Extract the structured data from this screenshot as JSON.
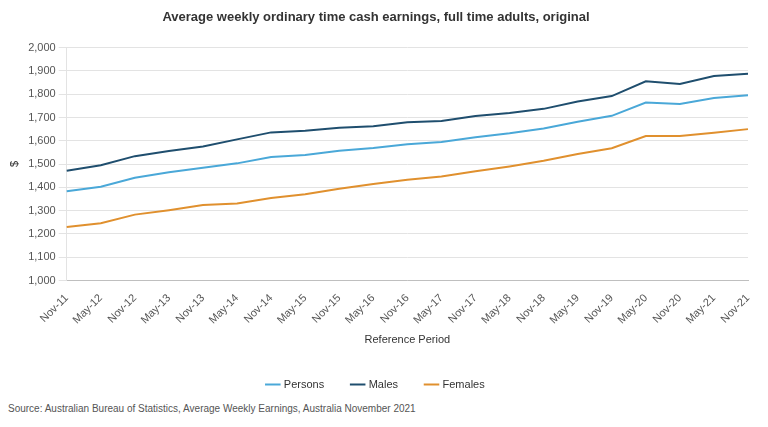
{
  "chart_data": {
    "type": "line",
    "title": "Average weekly ordinary time cash earnings, full time adults, original",
    "x_label": "Reference Period",
    "y_label": "$",
    "source": "Source: Australian Bureau of Statistics, Average Weekly Earnings, Australia November 2021",
    "categories": [
      "Nov-11",
      "May-12",
      "Nov-12",
      "May-13",
      "Nov-13",
      "May-14",
      "Nov-14",
      "May-15",
      "Nov-15",
      "May-16",
      "Nov-16",
      "May-17",
      "Nov-17",
      "May-18",
      "Nov-18",
      "May-19",
      "Nov-19",
      "May-20",
      "Nov-20",
      "May-21",
      "Nov-21"
    ],
    "series": [
      {
        "name": "Persons",
        "color": "#4aa8d8",
        "values": [
          1383,
          1403,
          1441,
          1465,
          1484,
          1503,
          1530,
          1539,
          1557,
          1569,
          1585,
          1595,
          1615,
          1632,
          1653,
          1682,
          1707,
          1764,
          1758,
          1784,
          1795
        ]
      },
      {
        "name": "Males",
        "color": "#1f4e6e",
        "values": [
          1471,
          1495,
          1534,
          1556,
          1575,
          1606,
          1636,
          1643,
          1656,
          1662,
          1679,
          1685,
          1706,
          1719,
          1737,
          1769,
          1792,
          1855,
          1844,
          1878,
          1888
        ]
      },
      {
        "name": "Females",
        "color": "#e0902e",
        "values": [
          1230,
          1246,
          1283,
          1302,
          1324,
          1331,
          1354,
          1370,
          1394,
          1414,
          1433,
          1447,
          1469,
          1490,
          1514,
          1543,
          1568,
          1620,
          1621,
          1634,
          1650
        ]
      }
    ],
    "ylim": [
      1000,
      2000
    ],
    "yticks": [
      {
        "value": 1000,
        "label": "1,000"
      },
      {
        "value": 1100,
        "label": "1,100"
      },
      {
        "value": 1200,
        "label": "1,200"
      },
      {
        "value": 1300,
        "label": "1,300"
      },
      {
        "value": 1400,
        "label": "1,400"
      },
      {
        "value": 1500,
        "label": "1,500"
      },
      {
        "value": 1600,
        "label": "1,600"
      },
      {
        "value": 1700,
        "label": "1,700"
      },
      {
        "value": 1800,
        "label": "1,800"
      },
      {
        "value": 1900,
        "label": "1,900"
      },
      {
        "value": 2000,
        "label": "2,000"
      }
    ],
    "grid": true,
    "legend": "bottom"
  }
}
